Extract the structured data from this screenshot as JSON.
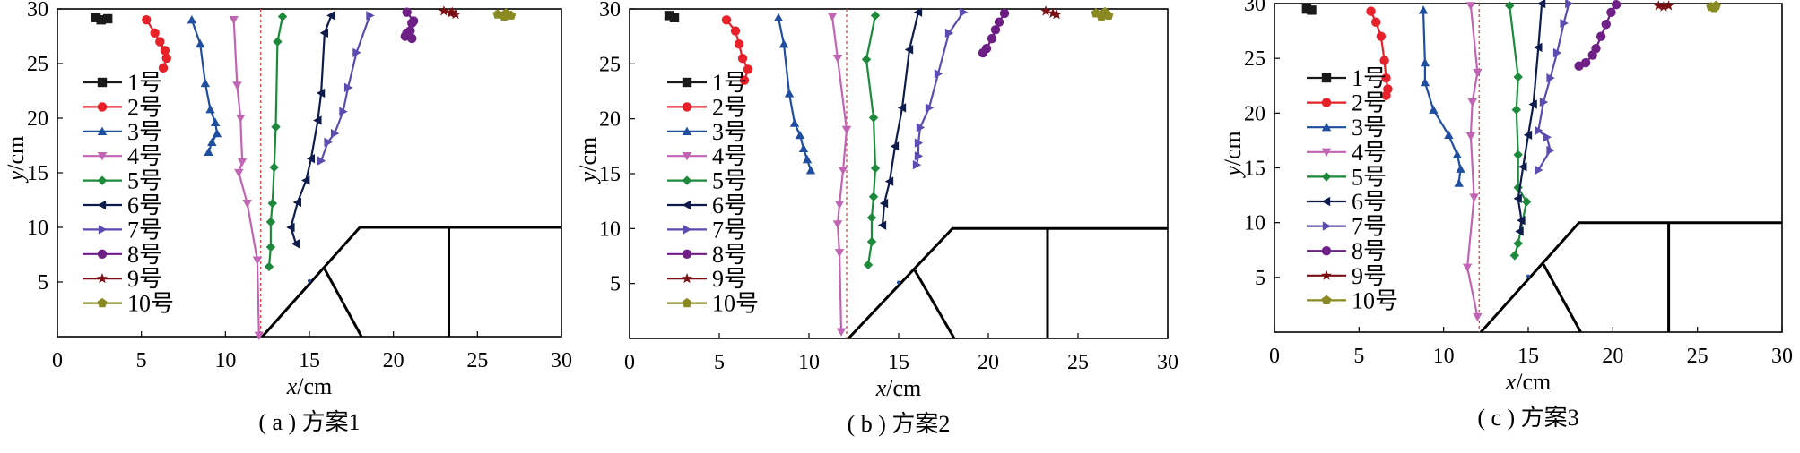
{
  "chart_data": [
    {
      "type": "line",
      "xlabel": "x/cm",
      "ylabel": "y/cm",
      "caption": "( a ) 方案1",
      "xlim": [
        0,
        30
      ],
      "ylim": [
        0,
        30
      ],
      "xticks": [
        0,
        5,
        10,
        15,
        20,
        25,
        30
      ],
      "yticks": [
        5,
        10,
        15,
        20,
        25,
        30
      ],
      "xtick_labels": [
        "0",
        "5",
        "10",
        "15",
        "20",
        "25",
        "30"
      ],
      "ytick_labels": [
        "5",
        "10",
        "15",
        "20",
        "25",
        "30"
      ],
      "ref_line_x": 12.1,
      "legend": [
        "1号",
        "2号",
        "3号",
        "4号",
        "5号",
        "6号",
        "7号",
        "8号",
        "9号",
        "10号"
      ],
      "series": [
        {
          "name": "1号",
          "color": "#1a1a1a",
          "marker": "square",
          "x": [
            2.3,
            2.6,
            3.0
          ],
          "y": [
            29.2,
            29.0,
            29.1
          ]
        },
        {
          "name": "2号",
          "color": "#e8202a",
          "marker": "circle",
          "x": [
            5.3,
            5.8,
            6.1,
            6.4,
            6.5,
            6.3
          ],
          "y": [
            29.0,
            27.8,
            27.0,
            26.2,
            25.5,
            24.6
          ]
        },
        {
          "name": "3号",
          "color": "#1f4ea1",
          "marker": "tri-up",
          "x": [
            8.0,
            8.5,
            8.8,
            9.1,
            9.4,
            9.5,
            9.2,
            9.0
          ],
          "y": [
            29.0,
            26.8,
            23.2,
            20.8,
            19.6,
            18.6,
            17.8,
            16.9
          ]
        },
        {
          "name": "4号",
          "color": "#c264b4",
          "marker": "tri-down",
          "x": [
            10.5,
            10.7,
            10.9,
            11.0,
            10.8,
            11.3,
            11.9,
            12.0
          ],
          "y": [
            29.0,
            23.0,
            20.0,
            16.0,
            15.0,
            12.2,
            7.0,
            0.1
          ]
        },
        {
          "name": "5号",
          "color": "#1c8a3a",
          "marker": "diamond",
          "x": [
            13.4,
            13.1,
            13.0,
            12.9,
            12.8,
            12.7,
            12.7,
            12.6
          ],
          "y": [
            29.3,
            27.0,
            19.2,
            15.5,
            12.2,
            10.5,
            8.2,
            6.4
          ]
        },
        {
          "name": "6号",
          "color": "#0d1b4d",
          "marker": "tri-left",
          "x": [
            16.3,
            15.9,
            15.7,
            15.5,
            15.1,
            14.8,
            14.3,
            13.9,
            14.2
          ],
          "y": [
            29.4,
            27.8,
            22.3,
            19.8,
            16.3,
            14.3,
            12.3,
            10.0,
            8.5
          ]
        },
        {
          "name": "7号",
          "color": "#5a4cb0",
          "marker": "tri-right",
          "x": [
            18.6,
            17.8,
            17.3,
            17.0,
            16.5,
            16.1,
            15.7
          ],
          "y": [
            29.4,
            26.0,
            22.8,
            20.6,
            18.6,
            17.8,
            16.1
          ]
        },
        {
          "name": "8号",
          "color": "#6e1f86",
          "marker": "circle",
          "x": [
            20.8,
            21.2,
            21.1,
            21.0,
            20.8,
            20.7,
            21.1
          ],
          "y": [
            29.7,
            28.9,
            28.7,
            28.0,
            27.8,
            27.5,
            27.3
          ]
        },
        {
          "name": "9号",
          "color": "#7a0f14",
          "marker": "star",
          "x": [
            23.0,
            23.4,
            23.7,
            23.5
          ],
          "y": [
            29.8,
            29.6,
            29.5,
            29.7
          ]
        },
        {
          "name": "10号",
          "color": "#8a8a22",
          "marker": "pentagon",
          "x": [
            26.2,
            26.7,
            27.0,
            26.6
          ],
          "y": [
            29.5,
            29.6,
            29.4,
            29.3
          ]
        }
      ]
    },
    {
      "type": "line",
      "xlabel": "x/cm",
      "ylabel": "y/cm",
      "caption": "( b ) 方案2",
      "xlim": [
        0,
        30
      ],
      "ylim": [
        0,
        30
      ],
      "xticks": [
        0,
        5,
        10,
        15,
        20,
        25,
        30
      ],
      "yticks": [
        5,
        10,
        15,
        20,
        25,
        30
      ],
      "xtick_labels": [
        "0",
        "5",
        "10",
        "15",
        "20",
        "25",
        "30"
      ],
      "ytick_labels": [
        "5",
        "10",
        "15",
        "20",
        "25",
        "30"
      ],
      "ref_line_x": 12.1,
      "legend": [
        "1号",
        "2号",
        "3号",
        "4号",
        "5号",
        "6号",
        "7号",
        "8号",
        "9号",
        "10号"
      ],
      "series": [
        {
          "name": "1号",
          "color": "#1a1a1a",
          "marker": "square",
          "x": [
            2.2,
            2.5
          ],
          "y": [
            29.4,
            29.2
          ]
        },
        {
          "name": "2号",
          "color": "#e8202a",
          "marker": "circle",
          "x": [
            5.4,
            5.9,
            6.1,
            6.3,
            6.6,
            6.4
          ],
          "y": [
            29.0,
            28.0,
            26.8,
            25.5,
            24.5,
            23.5
          ]
        },
        {
          "name": "3号",
          "color": "#1f4ea1",
          "marker": "tri-up",
          "x": [
            8.3,
            8.6,
            8.9,
            9.2,
            9.5,
            9.7,
            9.9,
            10.1
          ],
          "y": [
            29.2,
            26.8,
            22.3,
            19.6,
            18.5,
            17.3,
            16.3,
            15.3
          ]
        },
        {
          "name": "4号",
          "color": "#c264b4",
          "marker": "tri-down",
          "x": [
            11.3,
            11.6,
            12.1,
            11.9,
            11.7,
            11.6,
            11.7,
            11.8
          ],
          "y": [
            29.3,
            25.5,
            19.0,
            15.3,
            12.2,
            10.4,
            7.8,
            0.6
          ]
        },
        {
          "name": "5号",
          "color": "#1c8a3a",
          "marker": "diamond",
          "x": [
            13.7,
            13.2,
            13.6,
            13.7,
            13.6,
            13.5,
            13.5,
            13.3
          ],
          "y": [
            29.4,
            25.4,
            20.1,
            15.5,
            12.9,
            11.0,
            8.8,
            6.7
          ]
        },
        {
          "name": "6号",
          "color": "#0d1b4d",
          "marker": "tri-left",
          "x": [
            16.1,
            15.6,
            15.2,
            14.8,
            14.5,
            14.2,
            14.1
          ],
          "y": [
            29.7,
            26.3,
            21.0,
            17.5,
            14.3,
            12.3,
            10.3
          ]
        },
        {
          "name": "7号",
          "color": "#5a4cb0",
          "marker": "tri-right",
          "x": [
            18.6,
            17.8,
            17.2,
            16.7,
            16.2,
            16.1,
            16.1,
            16.0
          ],
          "y": [
            29.7,
            27.8,
            24.1,
            21.0,
            19.2,
            17.8,
            16.6,
            15.8
          ]
        },
        {
          "name": "8号",
          "color": "#6e1f86",
          "marker": "circle",
          "x": [
            20.9,
            20.6,
            20.4,
            20.2,
            19.9,
            19.7
          ],
          "y": [
            29.6,
            28.8,
            28.1,
            27.3,
            26.4,
            26.0
          ]
        },
        {
          "name": "9号",
          "color": "#7a0f14",
          "marker": "star",
          "x": [
            23.2,
            23.6,
            23.8
          ],
          "y": [
            29.8,
            29.6,
            29.5
          ]
        },
        {
          "name": "10号",
          "color": "#8a8a22",
          "marker": "pentagon",
          "x": [
            26.0,
            26.5,
            26.7,
            26.3
          ],
          "y": [
            29.6,
            29.7,
            29.4,
            29.3
          ]
        }
      ]
    },
    {
      "type": "line",
      "xlabel": "x/cm",
      "ylabel": "y/cm",
      "caption": "( c ) 方案3",
      "xlim": [
        0,
        30
      ],
      "ylim": [
        0,
        30
      ],
      "xticks": [
        0,
        5,
        10,
        15,
        20,
        25,
        30
      ],
      "yticks": [
        5,
        10,
        15,
        20,
        25,
        30
      ],
      "xtick_labels": [
        "0",
        "5",
        "10",
        "15",
        "20",
        "25",
        "30"
      ],
      "ytick_labels": [
        "5",
        "10",
        "15",
        "20",
        "25",
        "30"
      ],
      "ref_line_x": 12.1,
      "legend": [
        "1号",
        "2号",
        "3号",
        "4号",
        "5号",
        "6号",
        "7号",
        "8号",
        "9号",
        "10号"
      ],
      "series": [
        {
          "name": "1号",
          "color": "#1a1a1a",
          "marker": "square",
          "x": [
            1.9,
            2.2
          ],
          "y": [
            29.5,
            29.4
          ]
        },
        {
          "name": "2号",
          "color": "#e8202a",
          "marker": "circle",
          "x": [
            5.7,
            6.0,
            6.3,
            6.5,
            6.6,
            6.7,
            6.6
          ],
          "y": [
            29.3,
            28.3,
            27.0,
            24.8,
            23.2,
            22.2,
            21.6
          ]
        },
        {
          "name": "3号",
          "color": "#1f4ea1",
          "marker": "tri-up",
          "x": [
            8.8,
            8.9,
            8.9,
            9.4,
            10.3,
            10.8,
            11.0,
            10.9
          ],
          "y": [
            29.4,
            24.6,
            22.8,
            20.3,
            18.0,
            16.2,
            14.9,
            13.6
          ]
        },
        {
          "name": "4号",
          "color": "#c264b4",
          "marker": "tri-down",
          "x": [
            11.6,
            12.0,
            11.7,
            11.6,
            11.8,
            11.4,
            12.0
          ],
          "y": [
            29.8,
            23.7,
            21.0,
            17.9,
            12.3,
            5.9,
            1.4
          ]
        },
        {
          "name": "5号",
          "color": "#1c8a3a",
          "marker": "diamond",
          "x": [
            13.9,
            14.4,
            14.3,
            14.4,
            14.4,
            14.9,
            14.4,
            14.2
          ],
          "y": [
            29.8,
            23.3,
            20.3,
            16.2,
            13.2,
            11.9,
            8.1,
            7.0
          ]
        },
        {
          "name": "6号",
          "color": "#0d1b4d",
          "marker": "tri-left",
          "x": [
            15.8,
            15.6,
            15.3,
            15.0,
            14.7,
            14.4,
            14.6,
            14.5
          ],
          "y": [
            30.0,
            26.0,
            20.8,
            18.0,
            15.1,
            12.2,
            10.2,
            9.2
          ]
        },
        {
          "name": "7号",
          "color": "#5a4cb0",
          "marker": "tri-right",
          "x": [
            17.4,
            17.1,
            16.7,
            16.3,
            15.9,
            15.6,
            16.1,
            16.3,
            15.6
          ],
          "y": [
            30.0,
            28.2,
            25.5,
            23.2,
            21.0,
            18.4,
            17.8,
            16.6,
            14.8
          ]
        },
        {
          "name": "8号",
          "color": "#6e1f86",
          "marker": "circle",
          "x": [
            20.2,
            19.9,
            19.6,
            19.3,
            19.0,
            18.8,
            18.4,
            18.0
          ],
          "y": [
            29.9,
            29.2,
            28.1,
            27.0,
            25.9,
            25.3,
            24.6,
            24.3
          ]
        },
        {
          "name": "9号",
          "color": "#7a0f14",
          "marker": "star",
          "x": [
            22.7,
            23.0,
            23.3
          ],
          "y": [
            29.8,
            29.7,
            29.8
          ]
        },
        {
          "name": "10号",
          "color": "#8a8a22",
          "marker": "pentagon",
          "x": [
            25.8,
            26.1,
            26.0
          ],
          "y": [
            29.7,
            29.8,
            29.6
          ]
        }
      ]
    }
  ]
}
